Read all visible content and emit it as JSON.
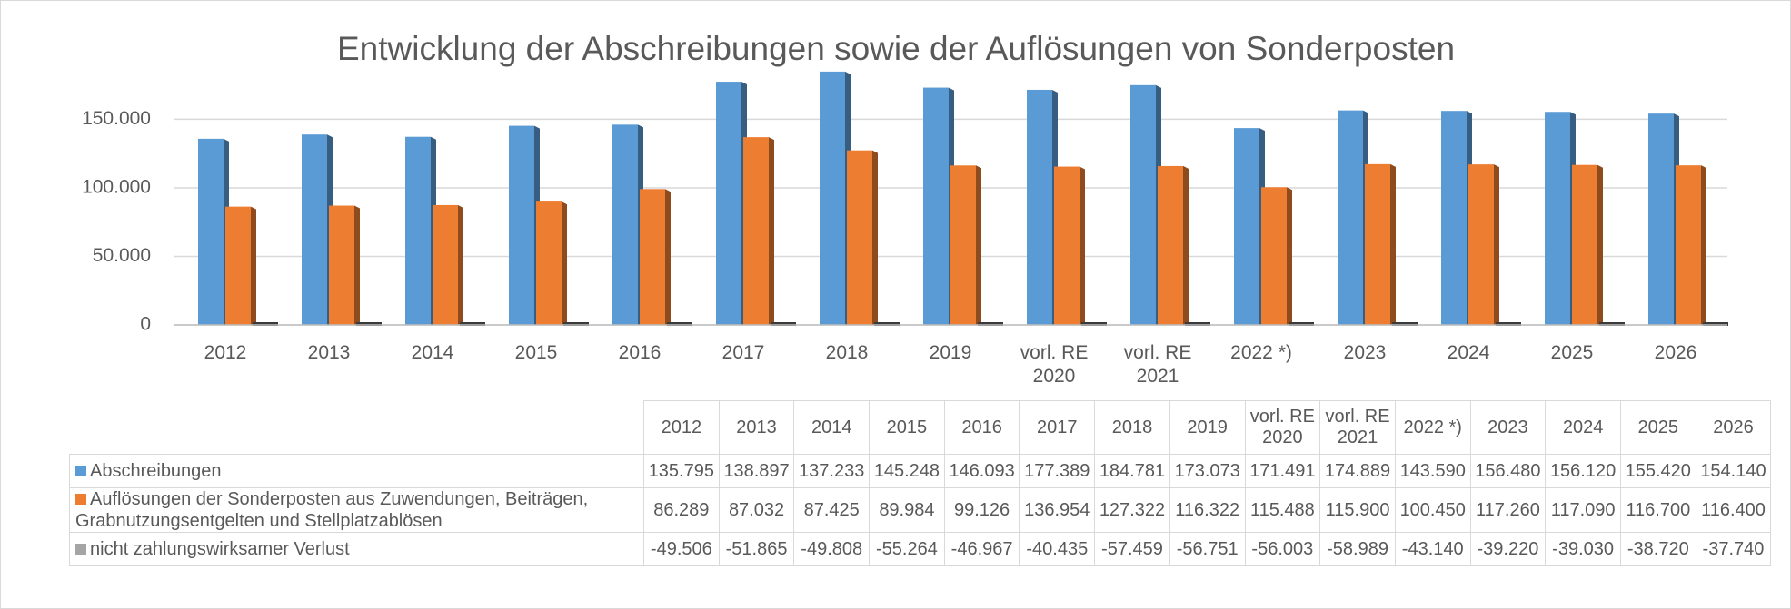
{
  "chart_data": {
    "type": "bar",
    "title": "Entwicklung der Abschreibungen sowie der Auflösungen von Sonderposten",
    "categories": [
      "2012",
      "2013",
      "2014",
      "2015",
      "2016",
      "2017",
      "2018",
      "2019",
      "vorl. RE 2020",
      "vorl. RE 2021",
      "2022 *)",
      "2023",
      "2024",
      "2025",
      "2026"
    ],
    "series": [
      {
        "name": "Abschreibungen",
        "color": "#5b9bd5",
        "values": [
          135795,
          138897,
          137233,
          145248,
          146093,
          177389,
          184781,
          173073,
          171491,
          174889,
          143590,
          156480,
          156120,
          155420,
          154140
        ],
        "value_labels": [
          "135.795",
          "138.897",
          "137.233",
          "145.248",
          "146.093",
          "177.389",
          "184.781",
          "173.073",
          "171.491",
          "174.889",
          "143.590",
          "156.480",
          "156.120",
          "155.420",
          "154.140"
        ]
      },
      {
        "name": "Auflösungen der Sonderposten aus Zuwendungen, Beiträgen, Grabnutzungsentgelten und Stellplatzablösen",
        "color": "#ed7d31",
        "values": [
          86289,
          87032,
          87425,
          89984,
          99126,
          136954,
          127322,
          116322,
          115488,
          115900,
          100450,
          117260,
          117090,
          116700,
          116400
        ],
        "value_labels": [
          "86.289",
          "87.032",
          "87.425",
          "89.984",
          "99.126",
          "136.954",
          "127.322",
          "116.322",
          "115.488",
          "115.900",
          "100.450",
          "117.260",
          "117.090",
          "116.700",
          "116.400"
        ]
      },
      {
        "name": "nicht zahlungswirksamer Verlust",
        "color": "#a5a5a5",
        "values": [
          -49506,
          -51865,
          -49808,
          -55264,
          -46967,
          -40435,
          -57459,
          -56751,
          -56003,
          -58989,
          -43140,
          -39220,
          -39030,
          -38720,
          -37740
        ],
        "value_labels": [
          "-49.506",
          "-51.865",
          "-49.808",
          "-55.264",
          "-46.967",
          "-40.435",
          "-57.459",
          "-56.751",
          "-56.003",
          "-58.989",
          "-43.140",
          "-39.220",
          "-39.030",
          "-38.720",
          "-37.740"
        ]
      }
    ],
    "ylim": [
      0,
      190000
    ],
    "yticks": [
      0,
      {
        "value": 50000,
        "label": "50.000"
      },
      {
        "value": 100000,
        "label": "100.000"
      },
      {
        "value": 150000,
        "label": "150.000"
      }
    ],
    "grid": true
  }
}
